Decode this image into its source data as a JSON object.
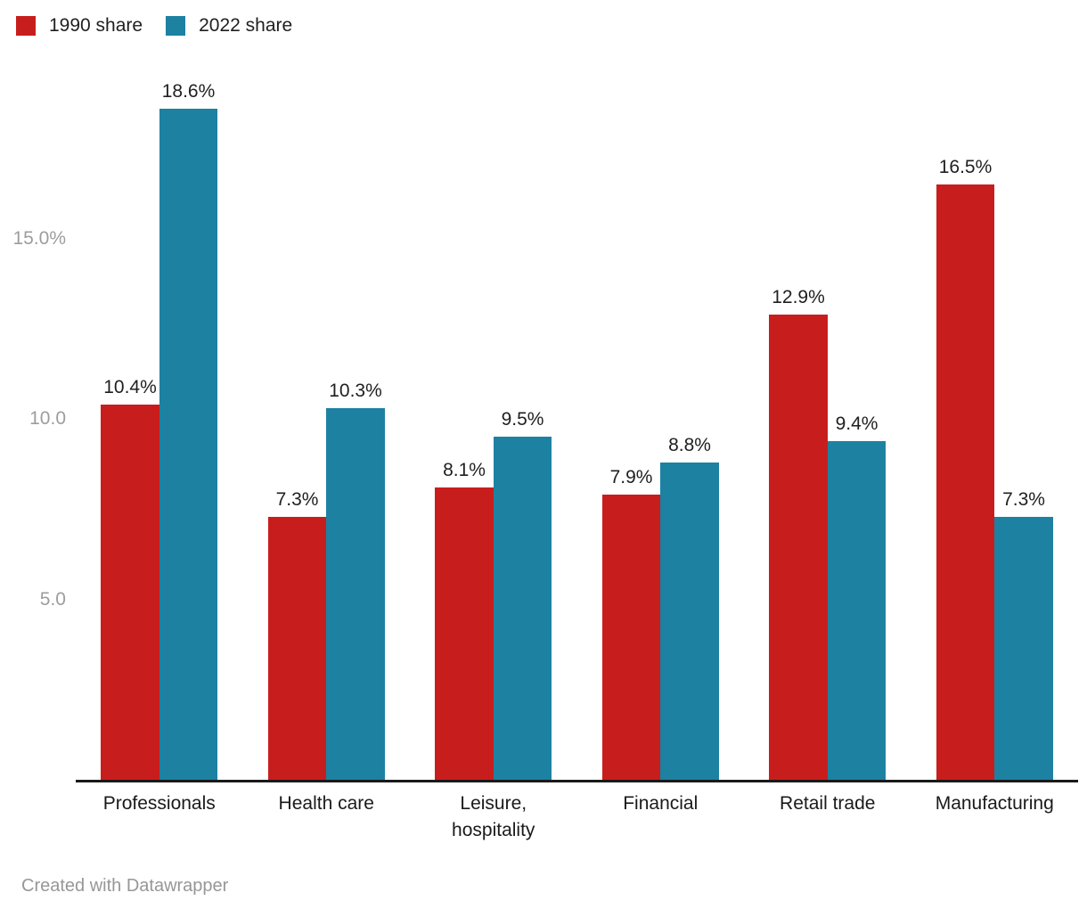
{
  "legend": {
    "items": [
      {
        "label": "1990 share",
        "color": "#c71e1d"
      },
      {
        "label": "2022 share",
        "color": "#1d81a2"
      }
    ]
  },
  "chart_data": {
    "type": "bar",
    "title": "",
    "categories": [
      "Professionals",
      "Health care",
      "Leisure,\nhospitality",
      "Financial",
      "Retail trade",
      "Manufacturing"
    ],
    "series": [
      {
        "name": "1990 share",
        "color": "#c71e1d",
        "values": [
          10.4,
          7.3,
          8.1,
          7.9,
          12.9,
          16.5
        ]
      },
      {
        "name": "2022 share",
        "color": "#1d81a2",
        "values": [
          18.6,
          10.3,
          9.5,
          8.8,
          9.4,
          7.3
        ]
      }
    ],
    "value_label_suffix": "%",
    "y_ticks": [
      {
        "value": 5.0,
        "label": "5.0"
      },
      {
        "value": 10.0,
        "label": "10.0"
      },
      {
        "value": 15.0,
        "label": "15.0%"
      }
    ],
    "ylim": [
      0,
      21.6
    ],
    "grid": false,
    "legend_position": "top-left",
    "xlabel": "",
    "ylabel": ""
  },
  "footer": {
    "attribution": "Created with Datawrapper"
  }
}
